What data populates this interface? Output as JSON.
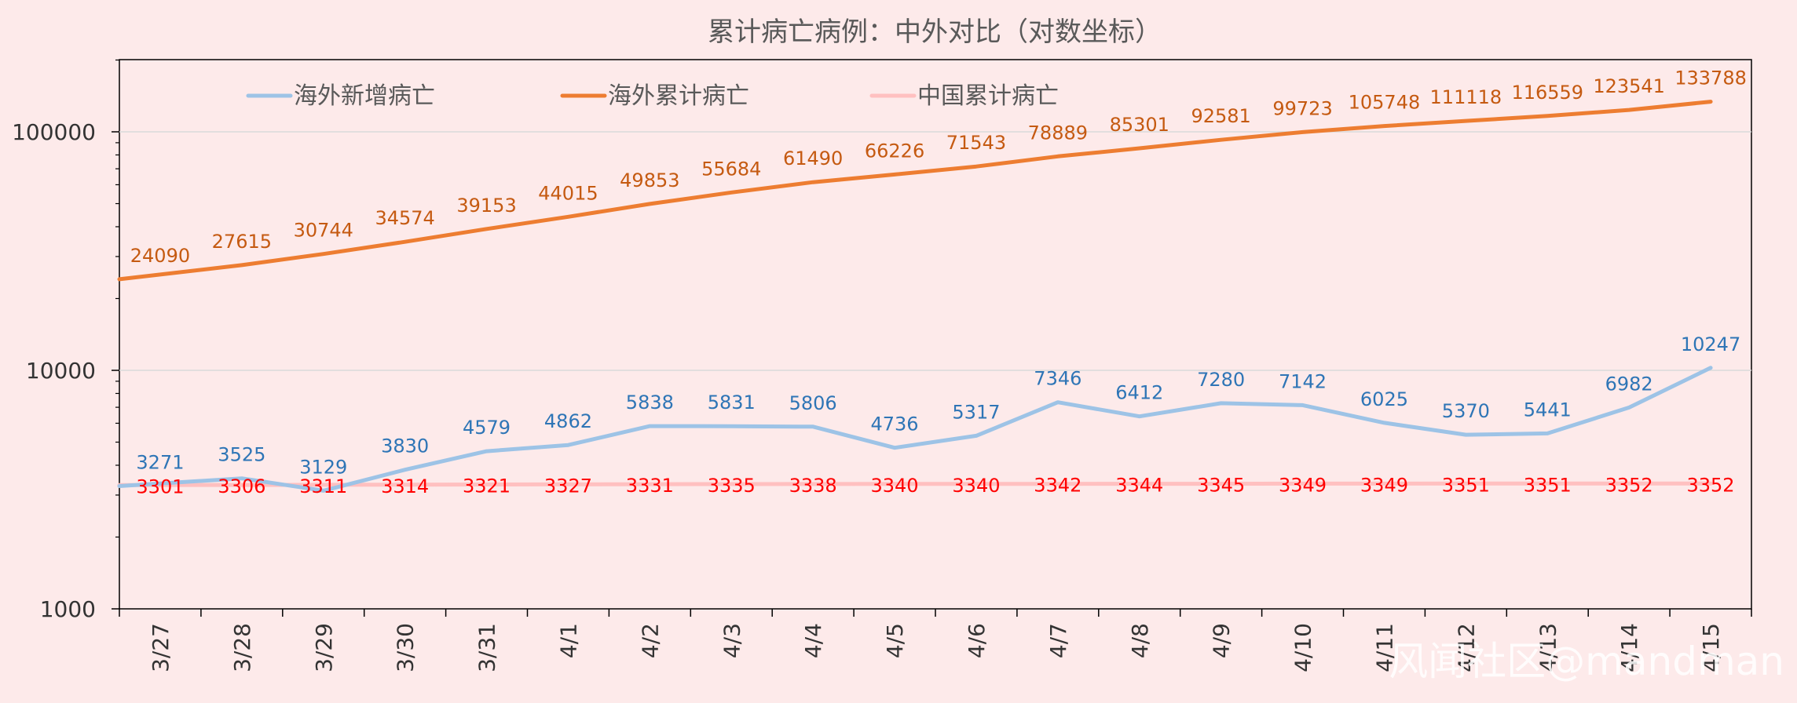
{
  "chart_data": {
    "type": "line",
    "title": "累计病亡病例：中外对比（对数坐标）",
    "xlabel": "",
    "ylabel": "",
    "y_scale": "log",
    "ylim": [
      1000,
      200000
    ],
    "y_ticks": [
      "1000",
      "10000",
      "100000"
    ],
    "grid": true,
    "legend_position": "top",
    "categories": [
      "3/27",
      "3/28",
      "3/29",
      "3/30",
      "3/31",
      "4/1",
      "4/2",
      "4/3",
      "4/4",
      "4/5",
      "4/6",
      "4/7",
      "4/8",
      "4/9",
      "4/10",
      "4/11",
      "4/12",
      "4/13",
      "4/14",
      "4/15"
    ],
    "series": [
      {
        "name": "海外新增病亡",
        "color": "#9dc3e6",
        "label_color": "#2e75b6",
        "values": [
          3271,
          3525,
          3129,
          3830,
          4579,
          4862,
          5838,
          5831,
          5806,
          4736,
          5317,
          7346,
          6412,
          7280,
          7142,
          6025,
          5370,
          5441,
          6982,
          10247
        ]
      },
      {
        "name": "海外累计病亡",
        "color": "#ed7d31",
        "label_color": "#c55a11",
        "values": [
          24090,
          27615,
          30744,
          34574,
          39153,
          44015,
          49853,
          55684,
          61490,
          66226,
          71543,
          78889,
          85301,
          92581,
          99723,
          105748,
          111118,
          116559,
          123541,
          133788
        ]
      },
      {
        "name": "中国累计病亡",
        "color": "#ffc0c0",
        "label_color": "#ff0000",
        "values": [
          3301,
          3306,
          3311,
          3314,
          3321,
          3327,
          3331,
          3335,
          3338,
          3340,
          3340,
          3342,
          3344,
          3345,
          3349,
          3349,
          3351,
          3351,
          3352,
          3352
        ]
      }
    ]
  },
  "watermark": "风闻社区@mandman"
}
